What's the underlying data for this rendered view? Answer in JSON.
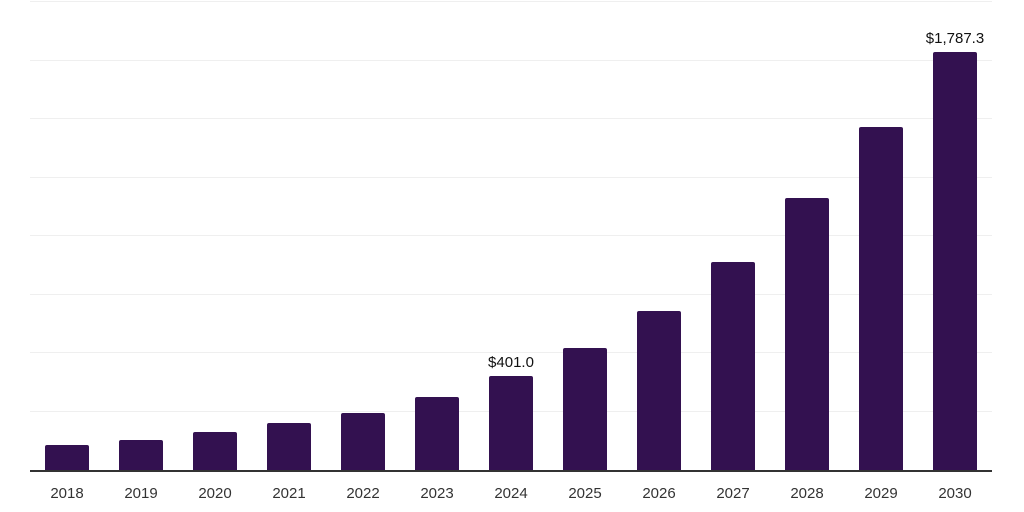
{
  "chart_data": {
    "type": "bar",
    "title": "",
    "xlabel": "",
    "ylabel": "",
    "categories": [
      "2018",
      "2019",
      "2020",
      "2021",
      "2022",
      "2023",
      "2024",
      "2025",
      "2026",
      "2027",
      "2028",
      "2029",
      "2030"
    ],
    "values": [
      106.9,
      129.9,
      161.1,
      200.9,
      245.3,
      312.0,
      401.0,
      521.4,
      679.6,
      887.7,
      1161.2,
      1464.7,
      1787.3
    ],
    "value_labels": {
      "2024": "$401.0",
      "2030": "$1,787.3"
    },
    "ylim": [
      0,
      2000
    ],
    "gridline_interval": 250,
    "grid": true,
    "legend": "none",
    "y_tick_labels_visible": false,
    "colors": {
      "bar": "#331150",
      "gridline": "#efefef",
      "axis_line": "#333333",
      "tick_label": "#333333",
      "value_label": "#111111",
      "background": "#ffffff"
    }
  }
}
